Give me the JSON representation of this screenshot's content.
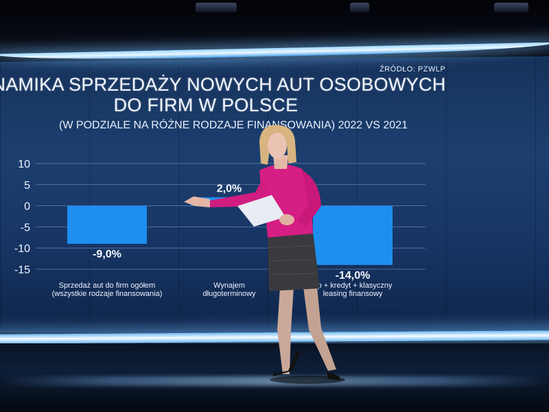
{
  "source": "ŹRÓDŁO: PZWLP",
  "title_line1": "DYNAMIKA SPRZEDAŻY NOWYCH AUT OSOBOWYCH",
  "title_line2": "DO FIRM W POLSCE",
  "subtitle": "(W PODZIALE NA RÓŻNE RODZAJE FINANSOWANIA) 2022 VS 2021",
  "colors": {
    "bar": "#1e8ef0",
    "wall": "#1c3f70",
    "jacket": "#d61e84"
  },
  "chart_data": {
    "type": "bar",
    "y_ticks": [
      "10",
      "5",
      "0",
      "-5",
      "-10",
      "-15"
    ],
    "ylim": [
      -15,
      10
    ],
    "grid": true,
    "categories": [
      [
        "Sprzedaż aut do firm ogółem",
        "(wszystkie rodzaje finansowania)"
      ],
      [
        "Wynajem",
        "długoterminowy"
      ],
      [
        "up + kredyt + klasyczny",
        "leasing finansowy"
      ]
    ],
    "values": [
      -9.0,
      2.0,
      -14.0
    ],
    "value_labels": [
      "-9,0%",
      "2,0%",
      "-14,0%"
    ]
  }
}
